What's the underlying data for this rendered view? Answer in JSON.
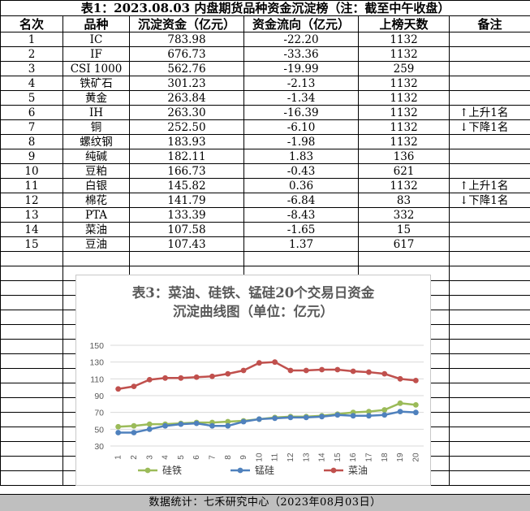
{
  "table": {
    "title": "表1：2023.08.03  内盘期货品种资金沉淀榜（注：截至中午收盘）",
    "headers": [
      "名次",
      "品种",
      "沉淀资金（亿元）",
      "资金流向（亿元）",
      "上榜天数",
      "备注"
    ],
    "rows": [
      [
        "1",
        "IC",
        "783.98",
        "-22.20",
        "1132",
        ""
      ],
      [
        "2",
        "IF",
        "676.73",
        "-33.36",
        "1132",
        ""
      ],
      [
        "3",
        "CSI 1000",
        "562.76",
        "-19.99",
        "259",
        ""
      ],
      [
        "4",
        "铁矿石",
        "301.23",
        "-2.13",
        "1132",
        ""
      ],
      [
        "5",
        "黄金",
        "263.84",
        "-1.34",
        "1132",
        ""
      ],
      [
        "6",
        "IH",
        "263.30",
        "-16.39",
        "1132",
        "↑上升1名"
      ],
      [
        "7",
        "铜",
        "252.50",
        "-6.10",
        "1132",
        "↓下降1名"
      ],
      [
        "8",
        "螺纹钢",
        "183.93",
        "-1.98",
        "1132",
        ""
      ],
      [
        "9",
        "纯碱",
        "182.11",
        "1.83",
        "136",
        ""
      ],
      [
        "10",
        "豆粕",
        "166.73",
        "-0.43",
        "621",
        ""
      ],
      [
        "11",
        "白银",
        "145.82",
        "0.36",
        "1132",
        "↑上升1名"
      ],
      [
        "12",
        "棉花",
        "141.79",
        "-6.84",
        "83",
        "↓下降1名"
      ],
      [
        "13",
        "PTA",
        "133.39",
        "-8.43",
        "332",
        ""
      ],
      [
        "14",
        "菜油",
        "107.58",
        "-1.65",
        "15",
        ""
      ],
      [
        "15",
        "豆油",
        "107.43",
        "1.37",
        "617",
        ""
      ]
    ]
  },
  "footer": "数据统计：七禾研究中心（2023年08月03日）",
  "chart_data": {
    "type": "line",
    "title_line1": "表3：菜油、硅铁、锰硅20个交易日资金",
    "title_line2": "沉淀曲线图（单位：亿元）",
    "x": [
      "1",
      "2",
      "3",
      "4",
      "5",
      "6",
      "7",
      "8",
      "9",
      "10",
      "11",
      "12",
      "13",
      "14",
      "15",
      "16",
      "17",
      "18",
      "19",
      "20"
    ],
    "ylim": [
      30,
      150
    ],
    "yticks": [
      30,
      50,
      70,
      90,
      110,
      130,
      150
    ],
    "grid": true,
    "legend_position": "bottom",
    "series": [
      {
        "name": "硅铁",
        "color": "#9bbb59",
        "values": [
          53,
          54,
          56,
          56,
          57,
          58,
          58,
          59,
          60,
          62,
          64,
          65,
          65,
          66,
          68,
          70,
          71,
          73,
          81,
          79
        ]
      },
      {
        "name": "锰硅",
        "color": "#4f81bd",
        "values": [
          46,
          46,
          50,
          54,
          56,
          57,
          54,
          54,
          59,
          62,
          63,
          64,
          64,
          65,
          67,
          66,
          66,
          67,
          71,
          70
        ]
      },
      {
        "name": "菜油",
        "color": "#c0504d",
        "values": [
          98,
          101,
          109,
          111,
          111,
          112,
          113,
          116,
          120,
          129,
          130,
          120,
          120,
          121,
          121,
          119,
          118,
          116,
          110,
          108
        ]
      }
    ]
  }
}
